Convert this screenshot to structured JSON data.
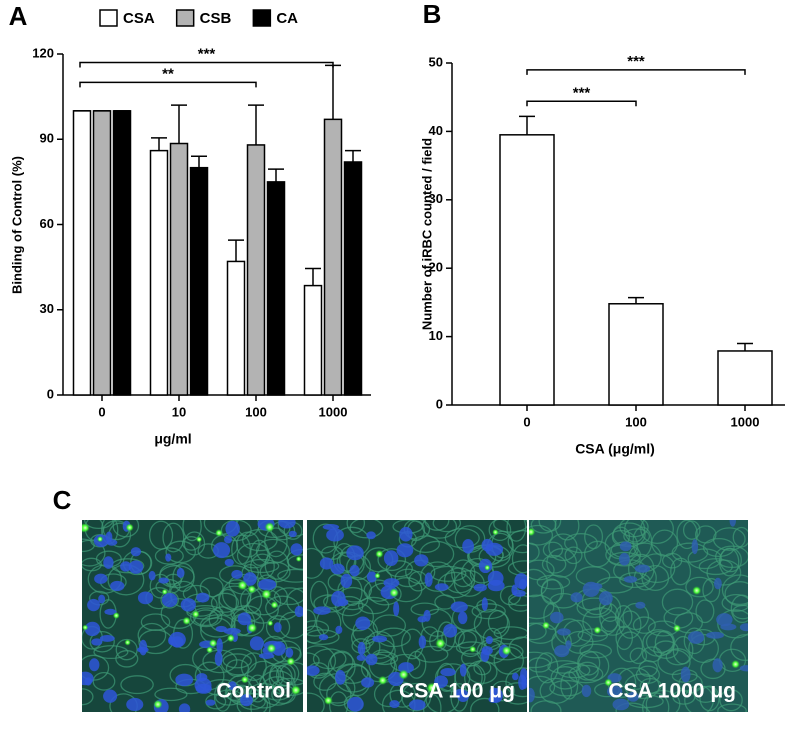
{
  "chart_data": [
    {
      "type": "bar",
      "panel": "A",
      "y_label": "Binding of Control (%)",
      "x_label": "μg/ml",
      "categories": [
        "0",
        "10",
        "100",
        "1000"
      ],
      "series": [
        {
          "name": "CSA",
          "color": "#ffffff",
          "values": [
            100,
            86,
            47,
            38.5
          ],
          "errors": [
            0,
            4.5,
            7.5,
            6
          ]
        },
        {
          "name": "CSB",
          "color": "#b3b3b3",
          "values": [
            100,
            88.5,
            88,
            97
          ],
          "errors": [
            0,
            13.5,
            14,
            19
          ]
        },
        {
          "name": "CA",
          "color": "#000000",
          "values": [
            100,
            80,
            75,
            82
          ],
          "errors": [
            0,
            4,
            4.5,
            4
          ]
        }
      ],
      "ylim": [
        0,
        120
      ],
      "yticks": [
        0,
        30,
        60,
        90,
        120
      ],
      "annotations": [
        {
          "text": "**",
          "y": 110,
          "x": [
            0,
            2
          ]
        },
        {
          "text": "***",
          "y": 117,
          "x": [
            0,
            3
          ]
        }
      ]
    },
    {
      "type": "bar",
      "panel": "B",
      "y_label": "Number of iRBC counted / field",
      "x_label": "CSA (μg/ml)",
      "categories": [
        "0",
        "100",
        "1000"
      ],
      "values": [
        39.5,
        14.8,
        7.9
      ],
      "errors": [
        2.7,
        0.9,
        1.1
      ],
      "color": "#ffffff",
      "ylim": [
        0,
        50
      ],
      "yticks": [
        0,
        10,
        20,
        30,
        40,
        50
      ],
      "annotations": [
        {
          "text": "***",
          "y": 44.4,
          "x": [
            0,
            1
          ]
        },
        {
          "text": "***",
          "y": 49,
          "x": [
            0,
            2
          ]
        }
      ]
    }
  ],
  "images": {
    "panel": "C",
    "labels": [
      "Control",
      "CSA 100 μg",
      "CSA 1000 μg"
    ]
  }
}
